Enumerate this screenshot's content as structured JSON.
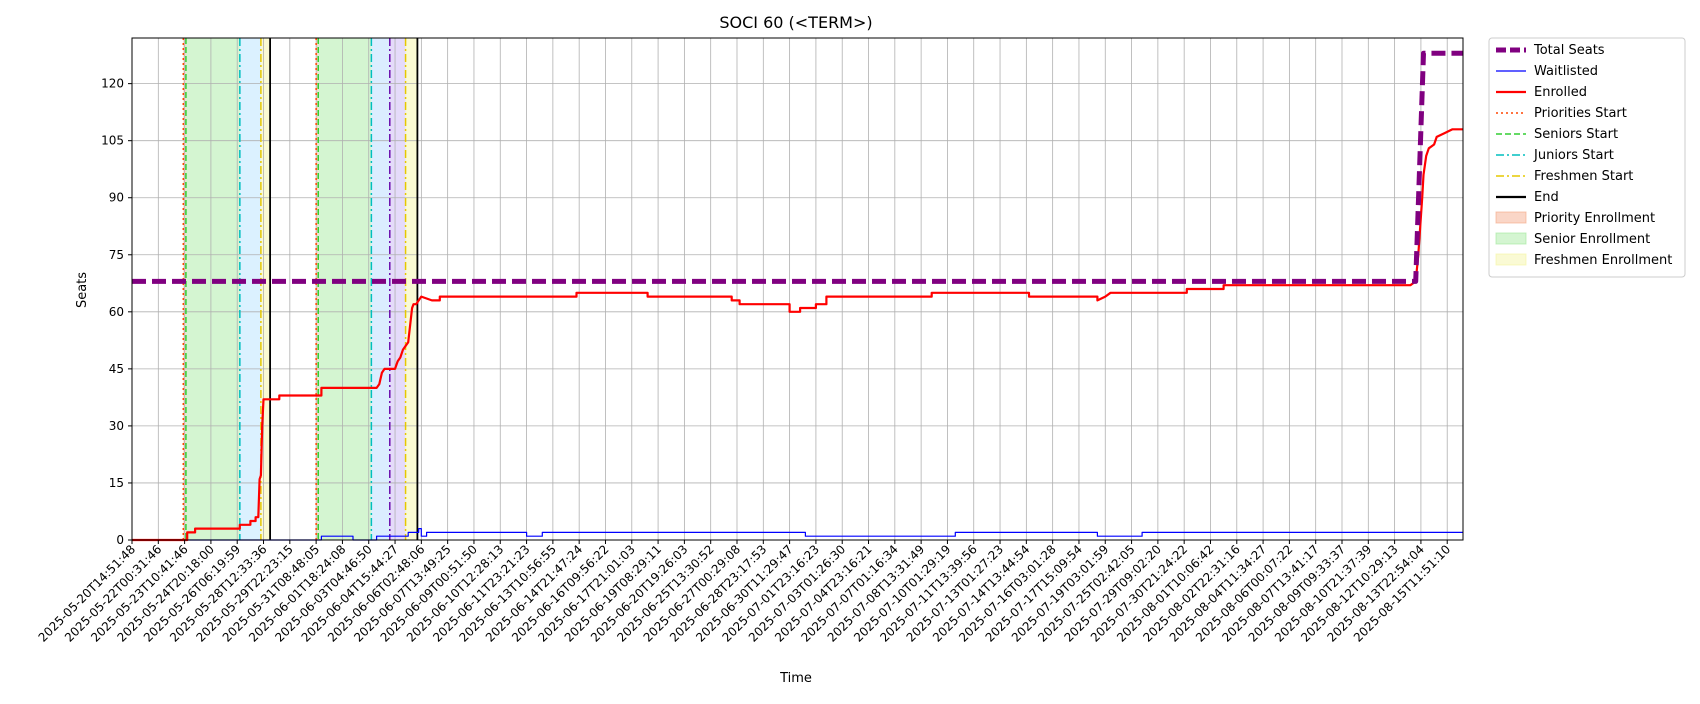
{
  "chart_data": {
    "type": "line",
    "title": "SOCI 60 (<TERM>)",
    "xlabel": "Time",
    "ylabel": "Seats",
    "ylim": [
      0,
      132
    ],
    "yticks": [
      0,
      15,
      30,
      45,
      60,
      75,
      90,
      105,
      120
    ],
    "grid": true,
    "legend_position": "outside-right",
    "x_tick_labels": [
      "2025-05-20T14:51:48",
      "2025-05-22T00:31:46",
      "2025-05-23T10:41:46",
      "2025-05-24T20:18:00",
      "2025-05-26T06:19:59",
      "2025-05-28T12:33:36",
      "2025-05-29T22:23:15",
      "2025-05-31T08:48:05",
      "2025-06-01T18:24:08",
      "2025-06-03T04:46:50",
      "2025-06-04T15:44:27",
      "2025-06-06T02:48:06",
      "2025-06-07T13:49:25",
      "2025-06-09T00:51:50",
      "2025-06-10T12:28:13",
      "2025-06-11T23:21:23",
      "2025-06-13T10:56:55",
      "2025-06-14T21:47:24",
      "2025-06-16T09:56:22",
      "2025-06-17T21:01:03",
      "2025-06-19T08:29:11",
      "2025-06-20T19:26:03",
      "2025-06-25T13:30:52",
      "2025-06-27T00:29:08",
      "2025-06-28T23:17:53",
      "2025-06-30T11:29:47",
      "2025-07-01T23:16:23",
      "2025-07-03T01:26:30",
      "2025-07-04T23:16:21",
      "2025-07-07T01:16:34",
      "2025-07-08T13:31:49",
      "2025-07-10T01:29:19",
      "2025-07-11T13:39:56",
      "2025-07-13T01:27:23",
      "2025-07-14T13:44:54",
      "2025-07-16T03:01:28",
      "2025-07-17T15:09:54",
      "2025-07-19T03:01:59",
      "2025-07-25T02:42:05",
      "2025-07-29T09:02:20",
      "2025-07-30T21:24:22",
      "2025-08-01T10:06:42",
      "2025-08-02T22:31:16",
      "2025-08-04T11:34:27",
      "2025-08-06T00:07:22",
      "2025-08-07T13:41:17",
      "2025-08-09T09:33:37",
      "2025-08-10T21:37:39",
      "2025-08-12T10:29:13",
      "2025-08-13T22:54:04",
      "2025-08-15T11:51:10"
    ],
    "x_index_range": [
      0,
      50.6
    ],
    "series": [
      {
        "name": "Total Seats",
        "color": "#800080",
        "style": "thick-dashed",
        "x": [
          0,
          48.8,
          48.8,
          49.1,
          49.3,
          50.6
        ],
        "y": [
          68,
          68,
          68,
          128,
          128,
          128
        ]
      },
      {
        "name": "Waitlisted",
        "color": "#0000ff",
        "style": "solid-thin",
        "x": [
          0,
          7.2,
          7.2,
          8.4,
          8.4,
          9.3,
          9.3,
          10.5,
          10.5,
          10.9,
          10.9,
          11.0,
          11.0,
          11.2,
          11.2,
          12.6,
          12.6,
          15.0,
          15.0,
          15.6,
          15.6,
          25.6,
          25.6,
          31.3,
          31.3,
          36.7,
          36.7,
          38.4,
          38.4,
          50.6
        ],
        "y": [
          0,
          0,
          1,
          1,
          0,
          0,
          1,
          1,
          2,
          2,
          3,
          3,
          1,
          1,
          2,
          2,
          2,
          2,
          1,
          1,
          2,
          2,
          1,
          1,
          2,
          2,
          1,
          1,
          2,
          2
        ]
      },
      {
        "name": "Enrolled",
        "color": "#ff0000",
        "style": "solid",
        "x": [
          0,
          2.1,
          2.1,
          2.3,
          2.3,
          2.4,
          2.4,
          3.7,
          3.7,
          4.1,
          4.1,
          4.5,
          4.5,
          4.7,
          4.7,
          4.8,
          4.85,
          4.9,
          4.95,
          5.0,
          5.0,
          5.6,
          5.6,
          7.2,
          7.2,
          9.3,
          9.3,
          9.4,
          9.5,
          9.6,
          9.6,
          10.0,
          10.1,
          10.2,
          10.3,
          10.5,
          10.6,
          10.65,
          10.7,
          10.8,
          10.9,
          11.0,
          11.0,
          11.4,
          11.6,
          11.7,
          11.7,
          12.9,
          12.9,
          16.9,
          16.9,
          19.6,
          19.6,
          22.8,
          22.8,
          23.1,
          23.1,
          25.0,
          25.0,
          25.4,
          25.4,
          26.0,
          26.0,
          26.4,
          26.4,
          30.4,
          30.4,
          34.1,
          34.1,
          36.7,
          36.7,
          37.0,
          37.0,
          37.2,
          37.2,
          40.1,
          40.1,
          41.5,
          41.5,
          48.6,
          48.6,
          48.8,
          48.9,
          49.0,
          49.05,
          49.1,
          49.2,
          49.3,
          49.5,
          49.6,
          49.9,
          50.2,
          50.2,
          50.6
        ],
        "y": [
          0,
          0,
          2,
          2,
          2,
          2,
          3,
          3,
          3,
          3,
          4,
          4,
          5,
          5,
          6,
          6,
          16,
          17,
          30,
          37,
          37,
          37,
          38,
          38,
          40,
          40,
          40,
          41,
          44,
          45,
          45,
          45,
          47,
          48,
          50,
          52,
          58,
          61,
          62,
          62,
          63,
          64,
          64,
          63,
          63,
          63,
          64,
          64,
          64,
          64,
          65,
          65,
          64,
          64,
          63,
          63,
          62,
          62,
          60,
          60,
          61,
          61,
          62,
          62,
          64,
          64,
          65,
          65,
          64,
          64,
          63,
          64,
          64,
          65,
          65,
          65,
          66,
          66,
          67,
          67,
          67,
          68,
          75,
          85,
          90,
          96,
          101,
          103,
          104,
          106,
          107,
          108,
          108,
          108
        ]
      }
    ],
    "vertical_lines": [
      {
        "name": "Priorities Start",
        "color": "#ff4500",
        "style": "dotted",
        "x": [
          1.95,
          7.0
        ]
      },
      {
        "name": "Seniors Start",
        "color": "#32cd32",
        "style": "dashed",
        "x": [
          2.05,
          7.08
        ]
      },
      {
        "name": "Juniors Start",
        "color": "#00bfbf",
        "style": "dashdot",
        "x": [
          4.1,
          9.1
        ]
      },
      {
        "name": "Freshmen Start",
        "color": "#e6c800",
        "style": "dashdot",
        "x": [
          4.9,
          10.4
        ]
      },
      {
        "name": "End",
        "color": "#000000",
        "style": "solid",
        "x": [
          5.25,
          10.85
        ]
      },
      {
        "name": "",
        "color": "#6a0dad",
        "style": "dashdot",
        "x": [
          9.8
        ]
      }
    ],
    "spans": [
      {
        "name": "Priority Enrollment",
        "color": "#f4a582",
        "from": 1.95,
        "to": 2.05
      },
      {
        "name": "Senior Enrollment",
        "color": "#9fe89a",
        "from": 2.05,
        "to": 4.1
      },
      {
        "name": "",
        "color": "#b0e0ff",
        "from": 4.1,
        "to": 4.9
      },
      {
        "name": "Freshmen Enrollment",
        "color": "#f5f5a0",
        "from": 4.9,
        "to": 5.25
      },
      {
        "name": "Priority Enrollment",
        "color": "#f4a582",
        "from": 7.0,
        "to": 7.08
      },
      {
        "name": "Senior Enrollment",
        "color": "#9fe89a",
        "from": 7.08,
        "to": 9.1
      },
      {
        "name": "",
        "color": "#b0d8ff",
        "from": 9.1,
        "to": 9.8
      },
      {
        "name": "",
        "color": "#c6b0f5",
        "from": 9.8,
        "to": 10.4
      },
      {
        "name": "Freshmen Enrollment",
        "color": "#f5f5a0",
        "from": 10.4,
        "to": 10.85
      }
    ],
    "legend": [
      {
        "label": "Total Seats",
        "kind": "line",
        "color": "#800080",
        "style": "thick-dashed"
      },
      {
        "label": "Waitlisted",
        "kind": "line",
        "color": "#0000ff",
        "style": "solid-thin"
      },
      {
        "label": "Enrolled",
        "kind": "line",
        "color": "#ff0000",
        "style": "solid"
      },
      {
        "label": "Priorities Start",
        "kind": "line",
        "color": "#ff4500",
        "style": "dotted"
      },
      {
        "label": "Seniors Start",
        "kind": "line",
        "color": "#32cd32",
        "style": "dashed"
      },
      {
        "label": "Juniors Start",
        "kind": "line",
        "color": "#00bfbf",
        "style": "dashdot"
      },
      {
        "label": "Freshmen Start",
        "kind": "line",
        "color": "#e6c800",
        "style": "dashdot"
      },
      {
        "label": "End",
        "kind": "line",
        "color": "#000000",
        "style": "solid"
      },
      {
        "label": "Priority Enrollment",
        "kind": "patch",
        "color": "#f4a582"
      },
      {
        "label": "Senior Enrollment",
        "kind": "patch",
        "color": "#9fe89a"
      },
      {
        "label": "Freshmen Enrollment",
        "kind": "patch",
        "color": "#f5f5a0"
      }
    ]
  }
}
